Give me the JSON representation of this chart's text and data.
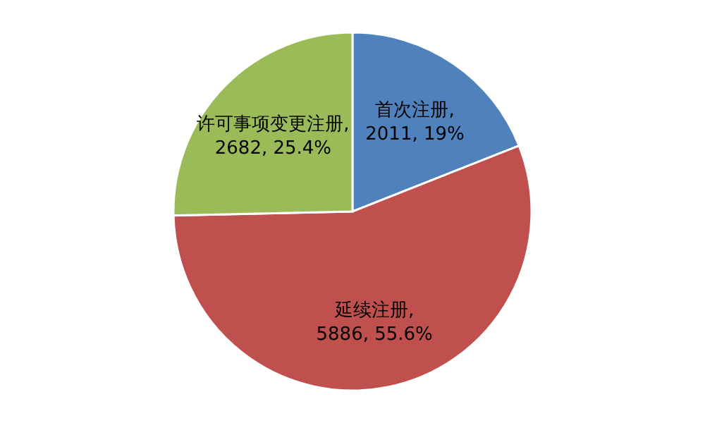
{
  "chart_data": {
    "type": "pie",
    "categories": [
      "首次注册",
      "延续注册",
      "许可事项变更注册"
    ],
    "values": [
      2011,
      5886,
      2682
    ],
    "colors": [
      "#4f81bd",
      "#c0504d",
      "#9bbb59"
    ],
    "value_labels": [
      ", 2011, 19%",
      ", 5886, 55.6%",
      ", 2682, 25.4%"
    ],
    "legend": false
  }
}
